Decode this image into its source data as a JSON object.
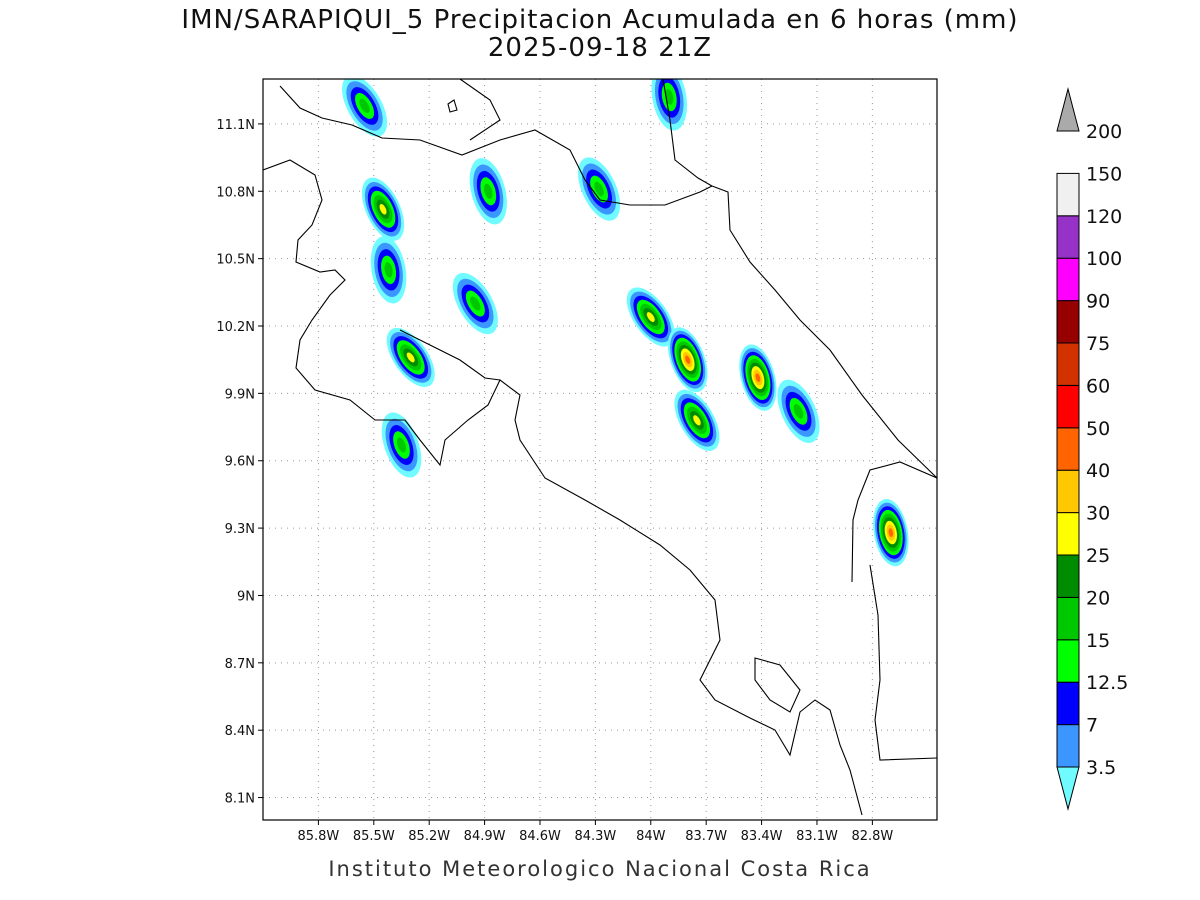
{
  "title": "IMN/SARAPIQUI_5 Precipitacion Acumulada en 6 horas (mm)",
  "subtitle": "2025-09-18 21Z",
  "footer": "Instituto Meteorologico Nacional Costa Rica",
  "axes": {
    "lon_ticks": [
      "85.8W",
      "85.5W",
      "85.2W",
      "84.9W",
      "84.6W",
      "84.3W",
      "84W",
      "83.7W",
      "83.4W",
      "83.1W",
      "82.8W"
    ],
    "lat_ticks": [
      "11.1N",
      "10.8N",
      "10.5N",
      "10.2N",
      "9.9N",
      "9.6N",
      "9.3N",
      "9N",
      "8.7N",
      "8.4N",
      "8.1N"
    ],
    "lon_range": [
      -86.1,
      -82.45
    ],
    "lat_range": [
      8.0,
      11.3
    ],
    "grid": true
  },
  "colorbar": {
    "labels": [
      "3.5",
      "7",
      "12.5",
      "15",
      "20",
      "25",
      "30",
      "40",
      "50",
      "60",
      "75",
      "90",
      "100",
      "120",
      "150",
      "200"
    ],
    "colors": [
      "#6ffbff",
      "#3b97ff",
      "#0000ff",
      "#00ff00",
      "#00c800",
      "#008c00",
      "#ffff00",
      "#ffc800",
      "#ff6400",
      "#ff0000",
      "#d23200",
      "#960000",
      "#ff00ff",
      "#9632c8",
      "#f0f0f0",
      "#aaaaaa"
    ]
  },
  "precip_cells": [
    {
      "lon": -85.55,
      "lat": 11.18,
      "peak": "20"
    },
    {
      "lon": -85.45,
      "lat": 10.72,
      "peak": "30"
    },
    {
      "lon": -85.42,
      "lat": 10.45,
      "peak": "20"
    },
    {
      "lon": -85.3,
      "lat": 10.06,
      "peak": "30"
    },
    {
      "lon": -85.35,
      "lat": 9.67,
      "peak": "20"
    },
    {
      "lon": -84.88,
      "lat": 10.8,
      "peak": "20"
    },
    {
      "lon": -84.95,
      "lat": 10.3,
      "peak": "20"
    },
    {
      "lon": -84.28,
      "lat": 10.81,
      "peak": "20"
    },
    {
      "lon": -83.9,
      "lat": 11.22,
      "peak": "20"
    },
    {
      "lon": -84.0,
      "lat": 10.24,
      "peak": "30"
    },
    {
      "lon": -83.8,
      "lat": 10.05,
      "peak": "50"
    },
    {
      "lon": -83.42,
      "lat": 9.97,
      "peak": "50"
    },
    {
      "lon": -83.75,
      "lat": 9.78,
      "peak": "30"
    },
    {
      "lon": -83.2,
      "lat": 9.82,
      "peak": "20"
    },
    {
      "lon": -82.7,
      "lat": 9.28,
      "peak": "50"
    }
  ]
}
